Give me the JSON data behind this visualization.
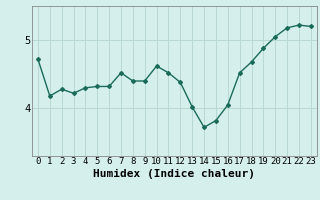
{
  "x": [
    0,
    1,
    2,
    3,
    4,
    5,
    6,
    7,
    8,
    9,
    10,
    11,
    12,
    13,
    14,
    15,
    16,
    17,
    18,
    19,
    20,
    21,
    22,
    23
  ],
  "y": [
    4.72,
    4.18,
    4.28,
    4.22,
    4.3,
    4.32,
    4.32,
    4.52,
    4.4,
    4.4,
    4.62,
    4.52,
    4.38,
    4.02,
    3.72,
    3.82,
    4.05,
    4.52,
    4.68,
    4.88,
    5.05,
    5.18,
    5.22,
    5.2
  ],
  "xlabel": "Humidex (Indice chaleur)",
  "yticks": [
    4,
    5
  ],
  "ylim": [
    3.3,
    5.5
  ],
  "xlim": [
    -0.5,
    23.5
  ],
  "line_color": "#1a6b5a",
  "marker": "D",
  "markersize": 2.0,
  "linewidth": 1.0,
  "bg_color": "#d5efed",
  "grid_color": "#b8d8d4",
  "xlabel_fontsize": 8,
  "tick_fontsize": 6.5,
  "ytick_labels": [
    "4",
    "5"
  ],
  "xtick_labels": [
    "0",
    "1",
    "2",
    "3",
    "4",
    "5",
    "6",
    "7",
    "8",
    "9",
    "10",
    "11",
    "12",
    "13",
    "14",
    "15",
    "16",
    "17",
    "18",
    "19",
    "20",
    "21",
    "22",
    "23"
  ]
}
